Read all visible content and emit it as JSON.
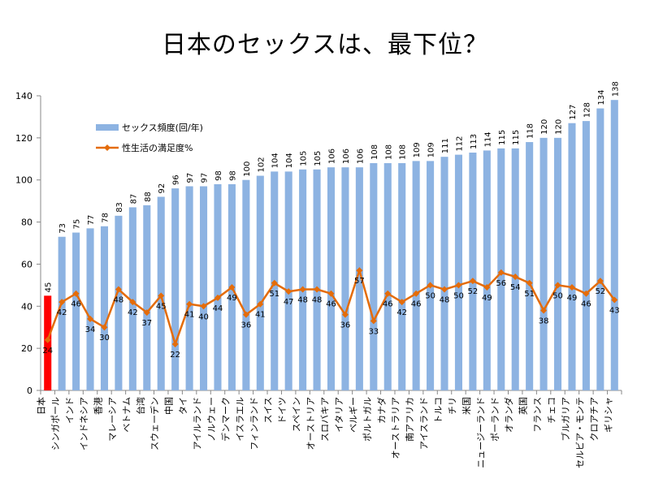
{
  "page": {
    "title": "日本のセックスは、最下位？"
  },
  "chart_data": {
    "type": "bar",
    "title": "日本のセックスは、最下位？",
    "categories": [
      "日本",
      "シンガポール",
      "インド",
      "インドネシア",
      "香港",
      "マレーシア",
      "ベトナム",
      "台湾",
      "スウェーデン",
      "中国",
      "タイ",
      "アイルランド",
      "ノルウェー",
      "デンマーク",
      "イスラエル",
      "フィンランド",
      "スイス",
      "ドイツ",
      "スペイン",
      "オーストリア",
      "スロバキア",
      "イタリア",
      "ベルギー",
      "ポルトガル",
      "カナダ",
      "オーストラリア",
      "南アフリカ",
      "アイスランド",
      "トルコ",
      "チリ",
      "米国",
      "ニュージーランド",
      "ポーランド",
      "オランダ",
      "英国",
      "フランス",
      "チェコ",
      "ブルガリア",
      "セルビア・モンテ",
      "クロアチア",
      "ギリシャ"
    ],
    "series": [
      {
        "name": "セックス頻度(回/年)",
        "kind": "bar",
        "color": "#8db3e2",
        "highlight_color": "#ff0000",
        "values": [
          45,
          73,
          75,
          77,
          78,
          83,
          87,
          88,
          92,
          96,
          97,
          97,
          98,
          98,
          100,
          102,
          104,
          104,
          105,
          105,
          106,
          106,
          106,
          108,
          108,
          108,
          109,
          109,
          111,
          112,
          113,
          114,
          115,
          115,
          118,
          120,
          120,
          127,
          128,
          134,
          138
        ]
      },
      {
        "name": "性生活の満足度%",
        "kind": "line",
        "color": "#e46c0a",
        "values": [
          24,
          42,
          46,
          34,
          30,
          48,
          42,
          37,
          45,
          22,
          41,
          40,
          44,
          49,
          36,
          41,
          51,
          47,
          48,
          48,
          46,
          36,
          57,
          33,
          46,
          42,
          46,
          50,
          48,
          50,
          52,
          49,
          56,
          54,
          51,
          38,
          50,
          49,
          46,
          52,
          43
        ]
      }
    ],
    "ylim": [
      0,
      140
    ],
    "yticks": [
      0,
      20,
      40,
      60,
      80,
      100,
      120,
      140
    ],
    "grid": false,
    "legend": "top-left"
  }
}
